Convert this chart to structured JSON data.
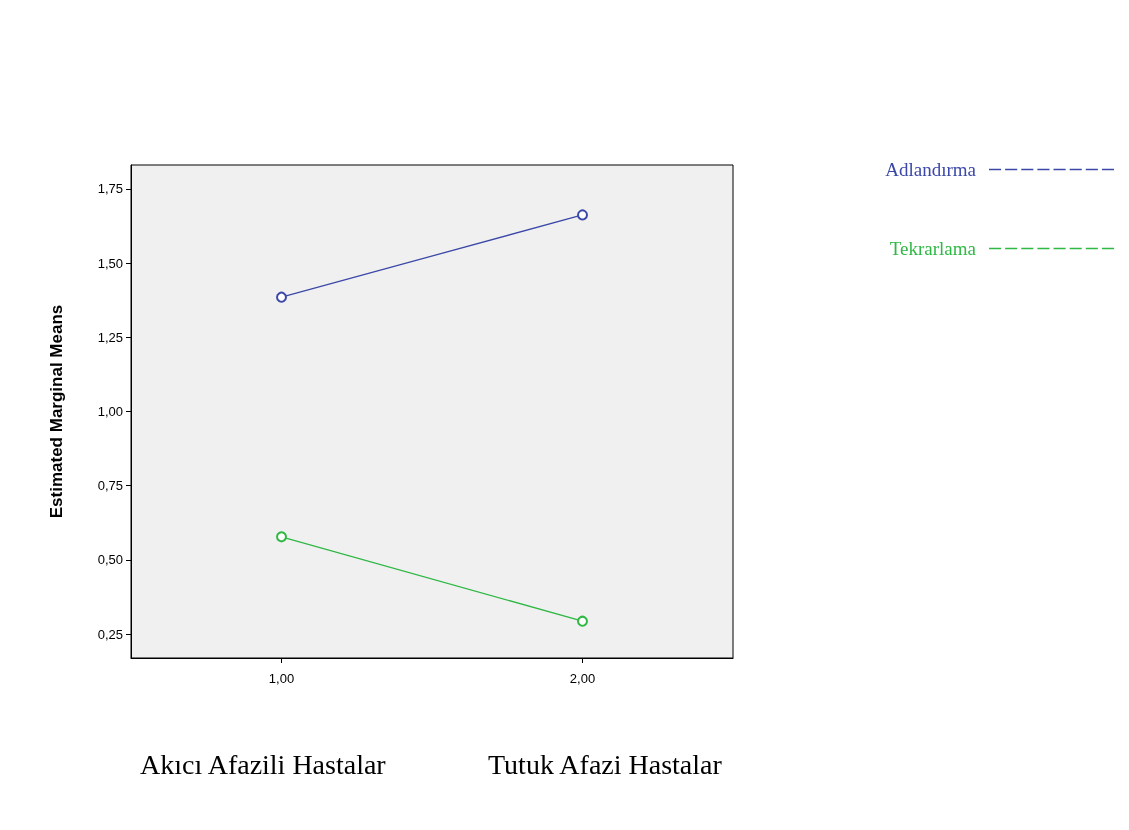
{
  "chart_data": {
    "type": "line",
    "ylabel": "Estimated Marginal Means",
    "categories": [
      "1,00",
      "2,00"
    ],
    "series": [
      {
        "name": "Adlandırma",
        "color": "#3b48a8",
        "values": [
          1.385,
          1.662
        ]
      },
      {
        "name": "Tekrarlama",
        "color": "#2fb844",
        "values": [
          0.578,
          0.294
        ]
      }
    ],
    "ylim": [
      0.17,
      1.83
    ],
    "yticks": [
      {
        "value": 0.25,
        "label": "0,25"
      },
      {
        "value": 0.5,
        "label": "0,50"
      },
      {
        "value": 0.75,
        "label": "0,75"
      },
      {
        "value": 1.0,
        "label": "1,00"
      },
      {
        "value": 1.25,
        "label": "1,25"
      },
      {
        "value": 1.5,
        "label": "1,50"
      },
      {
        "value": 1.75,
        "label": "1,75"
      }
    ],
    "annotations": [
      "Akıcı Afazili Hastalar",
      "Tutuk Afazi Hastalar"
    ],
    "marker": "circle",
    "line_style": "solid",
    "grid": false,
    "legend": "top right"
  }
}
